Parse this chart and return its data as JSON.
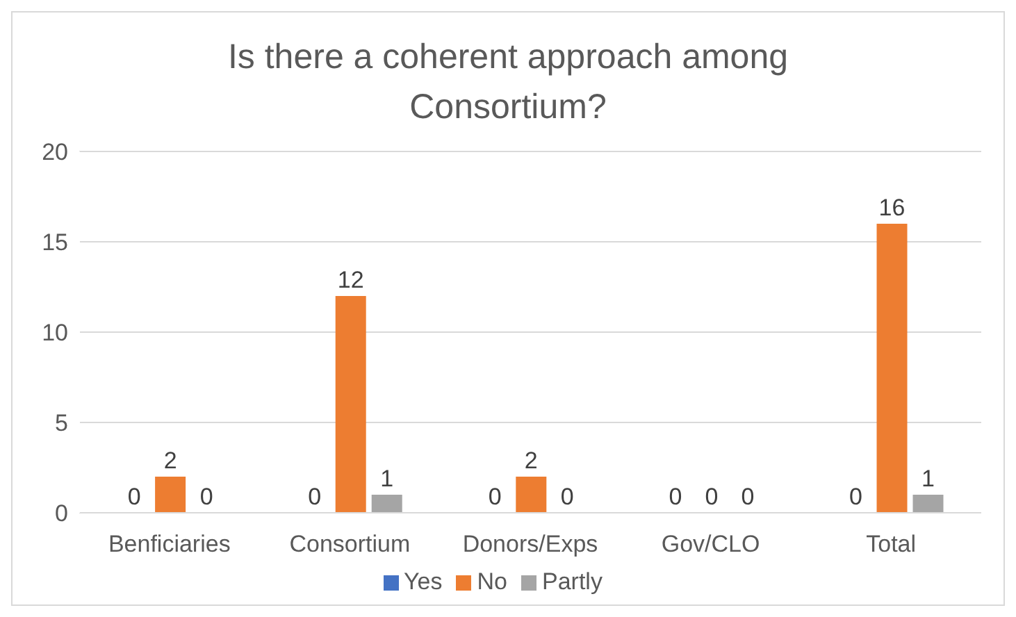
{
  "chart_data": {
    "type": "bar",
    "title": "Is there a coherent approach among Consortium?",
    "categories": [
      "Benficiaries",
      "Consortium",
      "Donors/Exps",
      "Gov/CLO",
      "Total"
    ],
    "series": [
      {
        "name": "Yes",
        "color": "#4472c4",
        "values": [
          0,
          0,
          0,
          0,
          0
        ]
      },
      {
        "name": "No",
        "color": "#ed7d31",
        "values": [
          2,
          12,
          2,
          0,
          16
        ]
      },
      {
        "name": "Partly",
        "color": "#a5a5a5",
        "values": [
          0,
          1,
          0,
          0,
          1
        ]
      }
    ],
    "ylim": [
      0,
      20
    ],
    "yticks": [
      0,
      5,
      10,
      15,
      20
    ],
    "grid": "y",
    "legend": "bottom",
    "data_labels": true
  }
}
